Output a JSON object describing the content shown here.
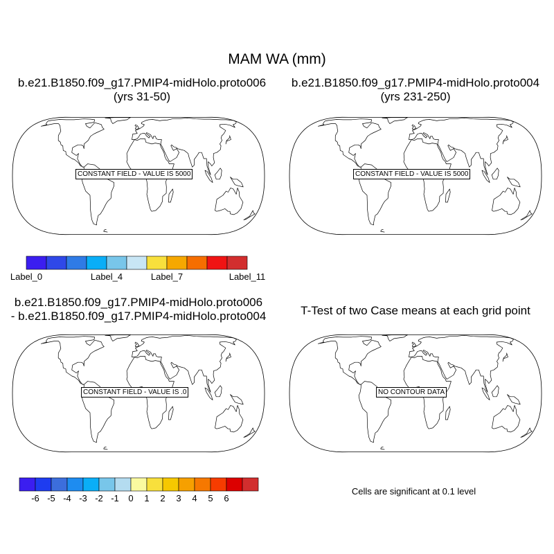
{
  "figure": {
    "title": "MAM WA (mm)"
  },
  "panels": [
    {
      "title_line1": "b.e21.B1850.f09_g17.PMIP4-midHolo.proto006",
      "title_line2": "(yrs 31-50)",
      "field_label": "CONSTANT FIELD - VALUE IS 5000"
    },
    {
      "title_line1": "b.e21.B1850.f09_g17.PMIP4-midHolo.proto004",
      "title_line2": "(yrs 231-250)",
      "field_label": "CONSTANT FIELD - VALUE IS 5000"
    },
    {
      "title_line1": "b.e21.B1850.f09_g17.PMIP4-midHolo.proto006",
      "title_line2": "- b.e21.B1850.f09_g17.PMIP4-midHolo.proto004",
      "field_label": "CONSTANT FIELD - VALUE IS .0"
    },
    {
      "title_line1": "T-Test of two Case means at each grid point",
      "title_line2": "",
      "field_label": "NO CONTOUR DATA"
    }
  ],
  "colorbars": {
    "case": {
      "colors": [
        "#3b1ef0",
        "#2f48e8",
        "#2f7be6",
        "#0aaef7",
        "#78c6ea",
        "#c8e6f5",
        "#f8e03c",
        "#f6a800",
        "#f66e00",
        "#f01414",
        "#d22e2e"
      ],
      "labels": [
        "Label_0",
        "Label_4",
        "Label_7",
        "Label_11"
      ],
      "label_boundaries": [
        0,
        4,
        7,
        11
      ]
    },
    "diff": {
      "colors": [
        "#3b1ef0",
        "#1e3cf0",
        "#3c6edc",
        "#1e8cf0",
        "#0aaef7",
        "#78c6ea",
        "#b4dcf0",
        "#fafaa0",
        "#f8e03c",
        "#f6c800",
        "#f6a000",
        "#f67800",
        "#f63c00",
        "#dc0000",
        "#d22e2e"
      ],
      "labels": [
        "-6",
        "-5",
        "-4",
        "-3",
        "-2",
        "-1",
        "0",
        "1",
        "2",
        "3",
        "4",
        "5",
        "6"
      ]
    }
  },
  "significance_note": "Cells are significant at 0.1 level"
}
